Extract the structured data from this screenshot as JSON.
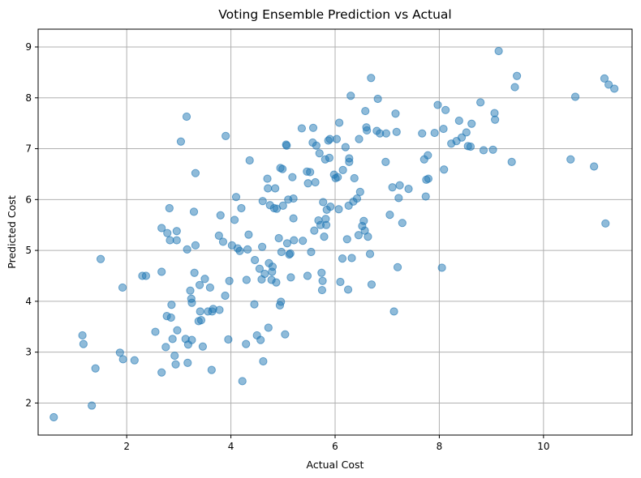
{
  "chart_data": {
    "type": "scatter",
    "title": "Voting Ensemble Prediction vs Actual",
    "xlabel": "Actual Cost",
    "ylabel": "Predicted Cost",
    "xlim": [
      0.3,
      11.7
    ],
    "ylim": [
      1.37,
      9.35
    ],
    "xticks": [
      2,
      4,
      6,
      8,
      10
    ],
    "yticks": [
      2,
      3,
      4,
      5,
      6,
      7,
      8,
      9
    ],
    "grid": true,
    "color": "#1f77b4",
    "points": [
      [
        0.6,
        1.72
      ],
      [
        1.33,
        1.95
      ],
      [
        1.15,
        3.33
      ],
      [
        1.17,
        3.16
      ],
      [
        1.4,
        2.68
      ],
      [
        1.5,
        4.83
      ],
      [
        1.87,
        2.99
      ],
      [
        1.93,
        2.86
      ],
      [
        1.92,
        4.27
      ],
      [
        2.15,
        2.84
      ],
      [
        2.3,
        4.5
      ],
      [
        2.37,
        4.5
      ],
      [
        2.55,
        3.4
      ],
      [
        2.67,
        2.6
      ],
      [
        2.67,
        4.58
      ],
      [
        2.67,
        5.44
      ],
      [
        2.75,
        3.1
      ],
      [
        2.77,
        3.71
      ],
      [
        2.78,
        5.34
      ],
      [
        2.82,
        5.83
      ],
      [
        2.83,
        5.2
      ],
      [
        2.85,
        3.68
      ],
      [
        2.86,
        3.93
      ],
      [
        2.88,
        3.26
      ],
      [
        2.92,
        2.93
      ],
      [
        2.94,
        2.76
      ],
      [
        2.96,
        5.2
      ],
      [
        2.96,
        5.38
      ],
      [
        2.97,
        3.43
      ],
      [
        3.04,
        7.14
      ],
      [
        3.13,
        3.26
      ],
      [
        3.15,
        7.63
      ],
      [
        3.16,
        5.02
      ],
      [
        3.17,
        2.79
      ],
      [
        3.18,
        3.15
      ],
      [
        3.22,
        4.21
      ],
      [
        3.24,
        4.05
      ],
      [
        3.25,
        3.24
      ],
      [
        3.25,
        3.97
      ],
      [
        3.29,
        5.76
      ],
      [
        3.3,
        4.56
      ],
      [
        3.32,
        6.52
      ],
      [
        3.32,
        5.1
      ],
      [
        3.38,
        3.61
      ],
      [
        3.4,
        4.32
      ],
      [
        3.41,
        3.8
      ],
      [
        3.43,
        3.63
      ],
      [
        3.46,
        3.11
      ],
      [
        3.5,
        4.44
      ],
      [
        3.56,
        3.8
      ],
      [
        3.6,
        4.27
      ],
      [
        3.63,
        2.65
      ],
      [
        3.64,
        3.8
      ],
      [
        3.66,
        3.85
      ],
      [
        3.77,
        5.29
      ],
      [
        3.78,
        3.83
      ],
      [
        3.8,
        5.69
      ],
      [
        3.85,
        5.17
      ],
      [
        3.89,
        4.11
      ],
      [
        3.9,
        7.25
      ],
      [
        3.95,
        3.25
      ],
      [
        3.97,
        4.4
      ],
      [
        4.02,
        5.1
      ],
      [
        4.07,
        5.6
      ],
      [
        4.1,
        6.05
      ],
      [
        4.13,
        5.04
      ],
      [
        4.17,
        4.99
      ],
      [
        4.2,
        5.83
      ],
      [
        4.22,
        2.43
      ],
      [
        4.29,
        3.16
      ],
      [
        4.3,
        4.42
      ],
      [
        4.32,
        5.02
      ],
      [
        4.34,
        5.31
      ],
      [
        4.36,
        6.77
      ],
      [
        4.45,
        3.94
      ],
      [
        4.46,
        4.81
      ],
      [
        4.5,
        3.33
      ],
      [
        4.55,
        4.64
      ],
      [
        4.57,
        3.24
      ],
      [
        4.59,
        4.43
      ],
      [
        4.6,
        5.07
      ],
      [
        4.61,
        5.97
      ],
      [
        4.62,
        2.82
      ],
      [
        4.65,
        4.54
      ],
      [
        4.7,
        6.41
      ],
      [
        4.71,
        6.22
      ],
      [
        4.72,
        3.48
      ],
      [
        4.73,
        4.75
      ],
      [
        4.75,
        5.89
      ],
      [
        4.78,
        4.42
      ],
      [
        4.79,
        4.58
      ],
      [
        4.8,
        4.68
      ],
      [
        4.83,
        5.83
      ],
      [
        4.85,
        6.22
      ],
      [
        4.87,
        4.37
      ],
      [
        4.88,
        5.82
      ],
      [
        4.92,
        5.24
      ],
      [
        4.94,
        3.92
      ],
      [
        4.95,
        6.62
      ],
      [
        4.96,
        3.99
      ],
      [
        4.97,
        4.97
      ],
      [
        4.99,
        6.6
      ],
      [
        5.0,
        5.88
      ],
      [
        5.04,
        3.35
      ],
      [
        5.06,
        7.08
      ],
      [
        5.07,
        7.06
      ],
      [
        5.08,
        5.14
      ],
      [
        5.1,
        6.0
      ],
      [
        5.12,
        4.92
      ],
      [
        5.14,
        4.94
      ],
      [
        5.15,
        4.47
      ],
      [
        5.18,
        6.44
      ],
      [
        5.2,
        6.02
      ],
      [
        5.2,
        5.63
      ],
      [
        5.21,
        5.2
      ],
      [
        5.36,
        7.4
      ],
      [
        5.38,
        5.19
      ],
      [
        5.46,
        6.55
      ],
      [
        5.47,
        4.5
      ],
      [
        5.48,
        6.32
      ],
      [
        5.52,
        6.54
      ],
      [
        5.54,
        4.97
      ],
      [
        5.57,
        7.12
      ],
      [
        5.58,
        7.41
      ],
      [
        5.6,
        5.39
      ],
      [
        5.62,
        6.34
      ],
      [
        5.64,
        7.06
      ],
      [
        5.68,
        5.59
      ],
      [
        5.7,
        6.91
      ],
      [
        5.72,
        5.5
      ],
      [
        5.74,
        4.56
      ],
      [
        5.75,
        4.22
      ],
      [
        5.76,
        4.4
      ],
      [
        5.77,
        5.95
      ],
      [
        5.79,
        5.27
      ],
      [
        5.81,
        6.79
      ],
      [
        5.82,
        5.62
      ],
      [
        5.83,
        5.5
      ],
      [
        5.84,
        5.8
      ],
      [
        5.87,
        7.16
      ],
      [
        5.89,
        6.82
      ],
      [
        5.9,
        7.19
      ],
      [
        5.91,
        5.86
      ],
      [
        5.98,
        6.49
      ],
      [
        6.01,
        6.42
      ],
      [
        6.03,
        7.19
      ],
      [
        6.05,
        6.44
      ],
      [
        6.07,
        5.81
      ],
      [
        6.08,
        7.51
      ],
      [
        6.1,
        4.38
      ],
      [
        6.14,
        4.84
      ],
      [
        6.15,
        6.58
      ],
      [
        6.2,
        7.03
      ],
      [
        6.23,
        5.22
      ],
      [
        6.25,
        4.23
      ],
      [
        6.26,
        5.88
      ],
      [
        6.27,
        6.74
      ],
      [
        6.27,
        6.81
      ],
      [
        6.3,
        8.04
      ],
      [
        6.32,
        4.85
      ],
      [
        6.35,
        5.96
      ],
      [
        6.37,
        6.42
      ],
      [
        6.42,
        6.02
      ],
      [
        6.45,
        5.3
      ],
      [
        6.46,
        7.19
      ],
      [
        6.48,
        6.15
      ],
      [
        6.52,
        5.48
      ],
      [
        6.55,
        5.58
      ],
      [
        6.57,
        5.39
      ],
      [
        6.58,
        7.74
      ],
      [
        6.6,
        7.42
      ],
      [
        6.61,
        7.36
      ],
      [
        6.63,
        5.27
      ],
      [
        6.67,
        4.93
      ],
      [
        6.69,
        8.39
      ],
      [
        6.7,
        4.33
      ],
      [
        6.8,
        7.35
      ],
      [
        6.82,
        7.98
      ],
      [
        6.86,
        7.3
      ],
      [
        6.97,
        6.74
      ],
      [
        6.98,
        7.3
      ],
      [
        7.05,
        5.7
      ],
      [
        7.1,
        6.24
      ],
      [
        7.13,
        3.8
      ],
      [
        7.16,
        7.69
      ],
      [
        7.18,
        7.33
      ],
      [
        7.2,
        4.67
      ],
      [
        7.22,
        6.03
      ],
      [
        7.24,
        6.28
      ],
      [
        7.29,
        5.54
      ],
      [
        7.41,
        6.21
      ],
      [
        7.67,
        7.3
      ],
      [
        7.71,
        6.79
      ],
      [
        7.74,
        6.06
      ],
      [
        7.75,
        6.39
      ],
      [
        7.78,
        6.87
      ],
      [
        7.79,
        6.41
      ],
      [
        7.91,
        7.31
      ],
      [
        7.97,
        7.86
      ],
      [
        8.05,
        4.66
      ],
      [
        8.08,
        7.39
      ],
      [
        8.09,
        6.59
      ],
      [
        8.12,
        7.76
      ],
      [
        8.23,
        7.1
      ],
      [
        8.33,
        7.15
      ],
      [
        8.38,
        7.55
      ],
      [
        8.43,
        7.22
      ],
      [
        8.52,
        7.32
      ],
      [
        8.55,
        7.05
      ],
      [
        8.6,
        7.04
      ],
      [
        8.62,
        7.49
      ],
      [
        8.79,
        7.91
      ],
      [
        8.85,
        6.97
      ],
      [
        9.03,
        6.98
      ],
      [
        9.06,
        7.7
      ],
      [
        9.07,
        7.57
      ],
      [
        9.14,
        8.92
      ],
      [
        9.39,
        6.74
      ],
      [
        9.45,
        8.21
      ],
      [
        9.49,
        8.43
      ],
      [
        10.52,
        6.79
      ],
      [
        10.61,
        8.02
      ],
      [
        10.97,
        6.65
      ],
      [
        11.17,
        8.38
      ],
      [
        11.19,
        5.53
      ],
      [
        11.25,
        8.26
      ],
      [
        11.36,
        8.18
      ]
    ]
  }
}
